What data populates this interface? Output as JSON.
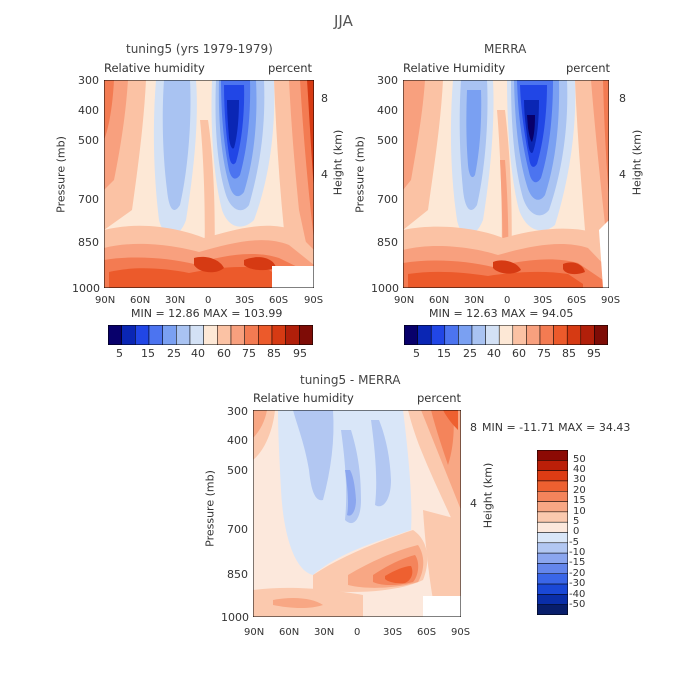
{
  "title": "JJA",
  "colors": {
    "rh_scale": [
      "#08006b",
      "#0a26b4",
      "#2146e6",
      "#4c74f0",
      "#7aa0f2",
      "#a9c3f2",
      "#d3e1f5",
      "#fde8d6",
      "#fbc2a4",
      "#f8a07e",
      "#f37b52",
      "#ec5a2b",
      "#d63a13",
      "#b11f0a",
      "#7e0c06"
    ],
    "diff_scale": [
      "#081e6b",
      "#0a2ea8",
      "#1a48d6",
      "#3a66e8",
      "#6486ec",
      "#8ba6ef",
      "#b2c7f2",
      "#d9e6f8",
      "#fce8dc",
      "#fbc9ae",
      "#f8a784",
      "#f4845b",
      "#ee6030",
      "#dd3c14",
      "#bb1f08",
      "#8c0a04"
    ]
  },
  "panels": [
    {
      "title": "tuning5 (yrs 1979-1979)",
      "left_label": "Relative humidity",
      "right_label": "percent",
      "ylabel": "Pressure (mb)",
      "y2label": "Height (km)",
      "pressure_ticks": [
        "300",
        "400",
        "500",
        "700",
        "850",
        "1000"
      ],
      "height_ticks": [
        "8",
        "4"
      ],
      "lat_ticks": [
        "90N",
        "60N",
        "30N",
        "0",
        "30S",
        "60S",
        "90S"
      ],
      "stats_text": "MIN =   12.86   MAX =  103.99",
      "colorbar_labels": [
        "5",
        "15",
        "25",
        "40",
        "60",
        "75",
        "85",
        "95"
      ],
      "chart_data": {
        "type": "heatmap",
        "variable": "Relative humidity",
        "units": "percent",
        "x": "latitude (90N to 90S)",
        "y": "pressure (mb)",
        "ylim": [
          1000,
          300
        ],
        "min": 12.86,
        "max": 103.99,
        "levels": [
          5,
          10,
          15,
          20,
          25,
          30,
          40,
          50,
          60,
          70,
          75,
          80,
          85,
          90,
          95
        ]
      }
    },
    {
      "title": "MERRA",
      "left_label": "Relative Humidity",
      "right_label": "percent",
      "ylabel": "Pressure (mb)",
      "y2label": "Height (km)",
      "pressure_ticks": [
        "300",
        "400",
        "500",
        "700",
        "850",
        "1000"
      ],
      "height_ticks": [
        "8",
        "4"
      ],
      "lat_ticks": [
        "90N",
        "60N",
        "30N",
        "0",
        "30S",
        "60S",
        "90S"
      ],
      "stats_text": "MIN =   12.63   MAX =   94.05",
      "colorbar_labels": [
        "5",
        "15",
        "25",
        "40",
        "60",
        "75",
        "85",
        "95"
      ],
      "chart_data": {
        "type": "heatmap",
        "variable": "Relative Humidity",
        "units": "percent",
        "x": "latitude (90N to 90S)",
        "y": "pressure (mb)",
        "ylim": [
          1000,
          300
        ],
        "min": 12.63,
        "max": 94.05,
        "levels": [
          5,
          10,
          15,
          20,
          25,
          30,
          40,
          50,
          60,
          70,
          75,
          80,
          85,
          90,
          95
        ]
      }
    },
    {
      "title": "tuning5 - MERRA",
      "left_label": "Relative humidity",
      "right_label": "percent",
      "ylabel": "Pressure (mb)",
      "y2label": "Height (km)",
      "pressure_ticks": [
        "300",
        "400",
        "500",
        "700",
        "850",
        "1000"
      ],
      "height_ticks": [
        "8",
        "4"
      ],
      "lat_ticks": [
        "90N",
        "60N",
        "30N",
        "0",
        "30S",
        "60S",
        "90S"
      ],
      "stats_text": "MIN = -11.71   MAX =   34.43",
      "colorbar_labels": [
        "50",
        "40",
        "30",
        "20",
        "15",
        "10",
        "5",
        "0",
        "-5",
        "-10",
        "-15",
        "-20",
        "-30",
        "-40",
        "-50"
      ],
      "chart_data": {
        "type": "heatmap",
        "variable": "Relative humidity difference",
        "units": "percent",
        "x": "latitude (90N to 90S)",
        "y": "pressure (mb)",
        "ylim": [
          1000,
          300
        ],
        "min": -11.71,
        "max": 34.43,
        "levels": [
          -50,
          -40,
          -30,
          -20,
          -15,
          -10,
          -5,
          0,
          5,
          10,
          15,
          20,
          30,
          40,
          50
        ]
      }
    }
  ]
}
